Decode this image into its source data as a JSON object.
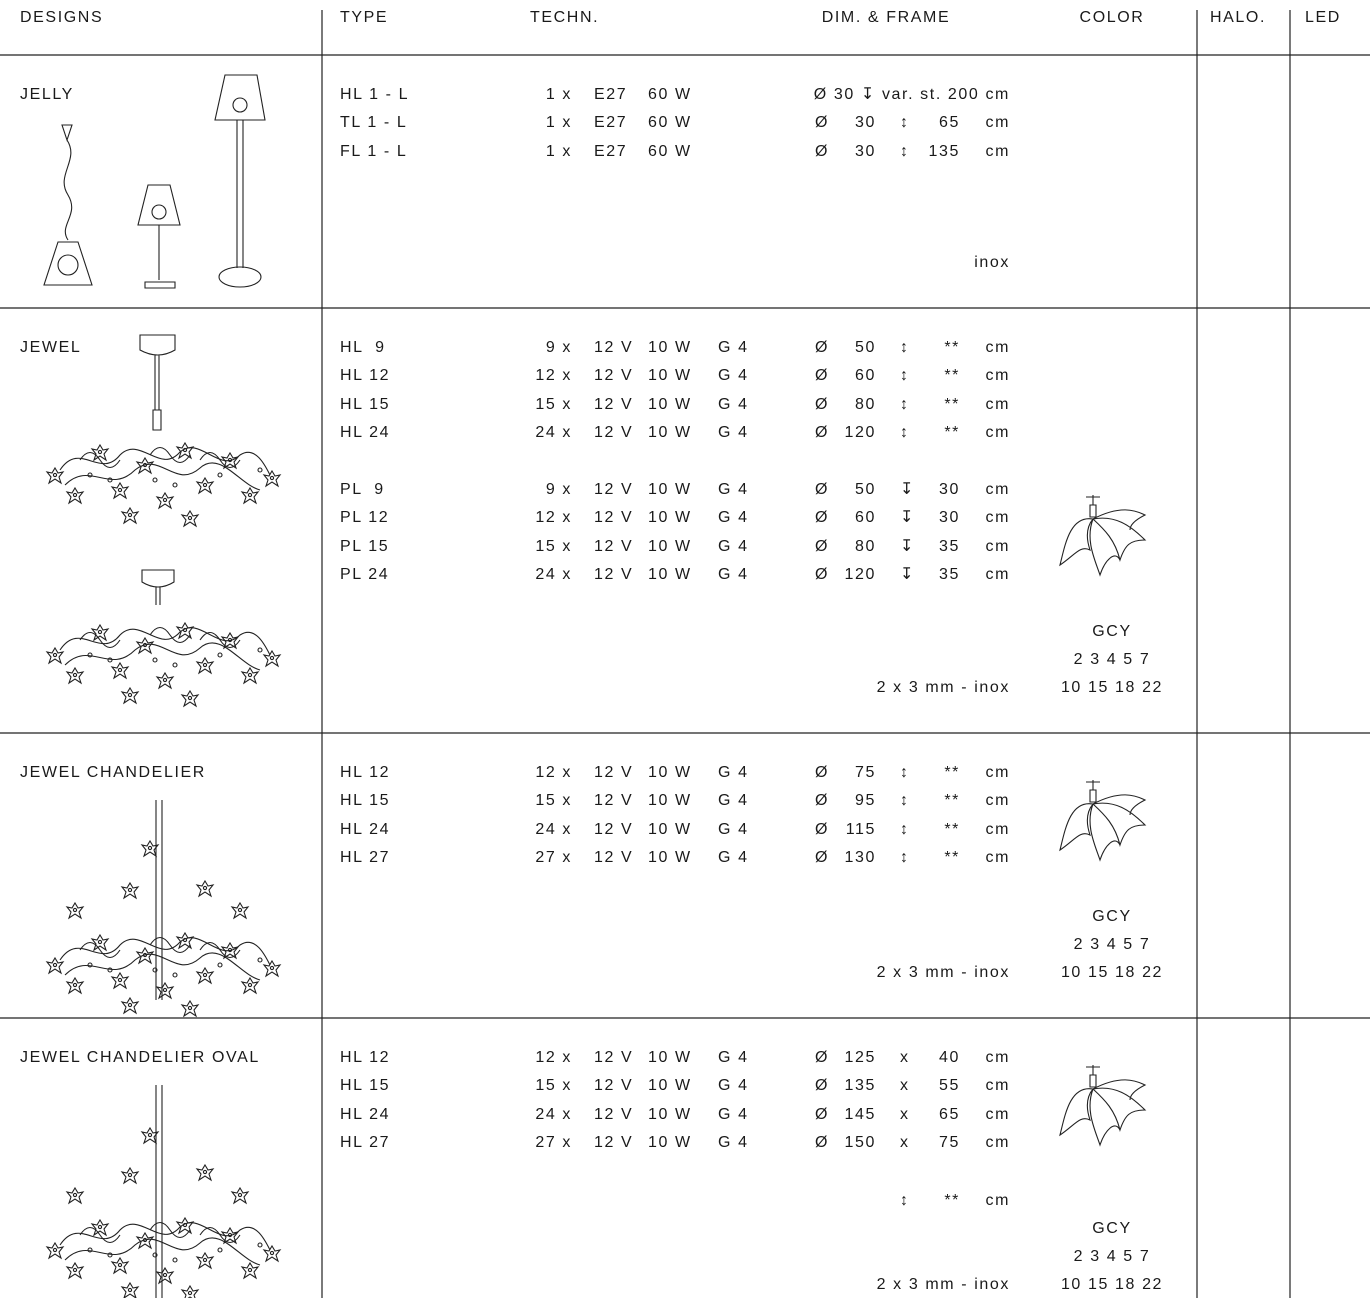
{
  "header": {
    "columns": [
      "DESIGNS",
      "TYPE",
      "TECHN.",
      "DIM. & FRAME",
      "COLOR",
      "HALO.",
      "LED"
    ]
  },
  "sections": [
    {
      "name": "JELLY",
      "groups": [
        [
          {
            "type": "HL 1 - L",
            "techn": [
              "1 x",
              "E27",
              "60 W"
            ],
            "dim": "Ø 30 ↧ var. st. 200 cm"
          },
          {
            "type": "TL 1 - L",
            "techn": [
              "1 x",
              "E27",
              "60 W"
            ],
            "dim": [
              "Ø",
              "30",
              "↕",
              "65",
              "cm"
            ]
          },
          {
            "type": "FL 1 - L",
            "techn": [
              "1 x",
              "E27",
              "60 W"
            ],
            "dim": [
              "Ø",
              "30",
              "↕",
              "135",
              "cm"
            ]
          }
        ]
      ],
      "frame": "inox"
    },
    {
      "name": "JEWEL",
      "groups": [
        [
          {
            "type": "HL  9",
            "techn": [
              "9 x",
              "12 V",
              "10 W",
              "G 4"
            ],
            "dim": [
              "Ø",
              "50",
              "↕",
              "**",
              "cm"
            ]
          },
          {
            "type": "HL 12",
            "techn": [
              "12 x",
              "12 V",
              "10 W",
              "G 4"
            ],
            "dim": [
              "Ø",
              "60",
              "↕",
              "**",
              "cm"
            ]
          },
          {
            "type": "HL 15",
            "techn": [
              "15 x",
              "12 V",
              "10 W",
              "G 4"
            ],
            "dim": [
              "Ø",
              "80",
              "↕",
              "**",
              "cm"
            ]
          },
          {
            "type": "HL 24",
            "techn": [
              "24 x",
              "12 V",
              "10 W",
              "G 4"
            ],
            "dim": [
              "Ø",
              "120",
              "↕",
              "**",
              "cm"
            ]
          }
        ],
        [
          {
            "type": "PL  9",
            "techn": [
              "9 x",
              "12 V",
              "10 W",
              "G 4"
            ],
            "dim": [
              "Ø",
              "50",
              "↧",
              "30",
              "cm"
            ]
          },
          {
            "type": "PL 12",
            "techn": [
              "12 x",
              "12 V",
              "10 W",
              "G 4"
            ],
            "dim": [
              "Ø",
              "60",
              "↧",
              "30",
              "cm"
            ]
          },
          {
            "type": "PL 15",
            "techn": [
              "15 x",
              "12 V",
              "10 W",
              "G 4"
            ],
            "dim": [
              "Ø",
              "80",
              "↧",
              "35",
              "cm"
            ]
          },
          {
            "type": "PL 24",
            "techn": [
              "24 x",
              "12 V",
              "10 W",
              "G 4"
            ],
            "dim": [
              "Ø",
              "120",
              "↧",
              "35",
              "cm"
            ]
          }
        ]
      ],
      "frame": "2 x 3 mm - inox",
      "color": [
        "GCY",
        "2 3 4 5 7",
        "10 15 18 22"
      ]
    },
    {
      "name": "JEWEL CHANDELIER",
      "groups": [
        [
          {
            "type": "HL 12",
            "techn": [
              "12 x",
              "12 V",
              "10 W",
              "G 4"
            ],
            "dim": [
              "Ø",
              "75",
              "↕",
              "**",
              "cm"
            ]
          },
          {
            "type": "HL 15",
            "techn": [
              "15 x",
              "12 V",
              "10 W",
              "G 4"
            ],
            "dim": [
              "Ø",
              "95",
              "↕",
              "**",
              "cm"
            ]
          },
          {
            "type": "HL 24",
            "techn": [
              "24 x",
              "12 V",
              "10 W",
              "G 4"
            ],
            "dim": [
              "Ø",
              "115",
              "↕",
              "**",
              "cm"
            ]
          },
          {
            "type": "HL 27",
            "techn": [
              "27 x",
              "12 V",
              "10 W",
              "G 4"
            ],
            "dim": [
              "Ø",
              "130",
              "↕",
              "**",
              "cm"
            ]
          }
        ]
      ],
      "frame": "2 x 3 mm - inox",
      "color": [
        "GCY",
        "2 3 4 5 7",
        "10 15 18 22"
      ]
    },
    {
      "name": "JEWEL CHANDELIER OVAL",
      "groups": [
        [
          {
            "type": "HL 12",
            "techn": [
              "12 x",
              "12 V",
              "10 W",
              "G 4"
            ],
            "dim": [
              "Ø",
              "125",
              "x",
              "40",
              "cm"
            ]
          },
          {
            "type": "HL 15",
            "techn": [
              "15 x",
              "12 V",
              "10 W",
              "G 4"
            ],
            "dim": [
              "Ø",
              "135",
              "x",
              "55",
              "cm"
            ]
          },
          {
            "type": "HL 24",
            "techn": [
              "24 x",
              "12 V",
              "10 W",
              "G 4"
            ],
            "dim": [
              "Ø",
              "145",
              "x",
              "65",
              "cm"
            ]
          },
          {
            "type": "HL 27",
            "techn": [
              "27 x",
              "12 V",
              "10 W",
              "G 4"
            ],
            "dim": [
              "Ø",
              "150",
              "x",
              "75",
              "cm"
            ]
          }
        ]
      ],
      "note": [
        "↕",
        "**",
        "cm"
      ],
      "frame": "2 x 3 mm - inox",
      "color": [
        "GCY",
        "2 3 4 5 7",
        "10 15 18 22"
      ]
    }
  ]
}
